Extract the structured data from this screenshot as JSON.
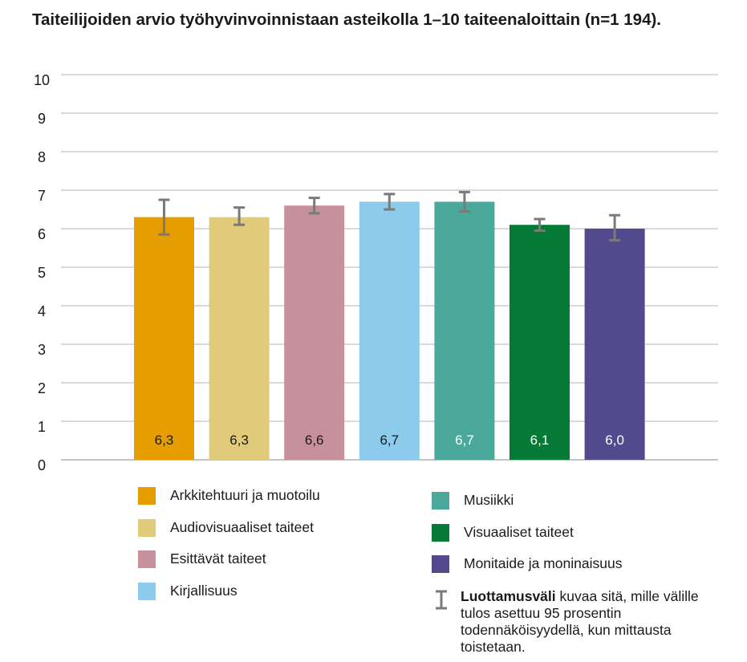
{
  "chart_data": {
    "type": "bar",
    "title": "Taiteilijoiden arvio työhyvinvoinnistaan asteikolla 1–10 taiteenaloittain (n=1 194).",
    "xlabel": "",
    "ylabel": "",
    "ylim": [
      0,
      10
    ],
    "yticks": [
      "0",
      "1",
      "2",
      "3",
      "4",
      "5",
      "6",
      "7",
      "8",
      "9",
      "10"
    ],
    "grid": true,
    "legend_placement": "bottom",
    "categories": [
      "Arkkitehtuuri ja muotoilu",
      "Audiovisuaaliset taiteet",
      "Esittävät taiteet",
      "Kirjallisuus",
      "Musiikki",
      "Visuaaliset taiteet",
      "Monitaide ja moninaisuus"
    ],
    "values": [
      6.3,
      6.3,
      6.6,
      6.7,
      6.7,
      6.1,
      6.0
    ],
    "value_labels": [
      "6,3",
      "6,3",
      "6,6",
      "6,7",
      "6,7",
      "6,1",
      "6,0"
    ],
    "ci_low": [
      5.85,
      6.1,
      6.4,
      6.5,
      6.45,
      5.95,
      5.7
    ],
    "ci_high": [
      6.75,
      6.55,
      6.8,
      6.9,
      6.95,
      6.25,
      6.35
    ],
    "colors": [
      "#e59d00",
      "#dfcb7a",
      "#c6919a",
      "#8ccbec",
      "#4aa99b",
      "#057a36",
      "#524a8d"
    ],
    "label_colors": [
      "#1a1a1a",
      "#1a1a1a",
      "#1a1a1a",
      "#1a1a1a",
      "#ffffff",
      "#ffffff",
      "#ffffff"
    ],
    "ci_color": "#7a7a7a",
    "grid_color": "#b5b5b5"
  },
  "ci_note": {
    "bold": "Luottamusväli",
    "text": " kuvaa sitä, mille välille tulos asettuu 95 prosentin todennäköisyydellä, kun mittausta toistetaan."
  }
}
